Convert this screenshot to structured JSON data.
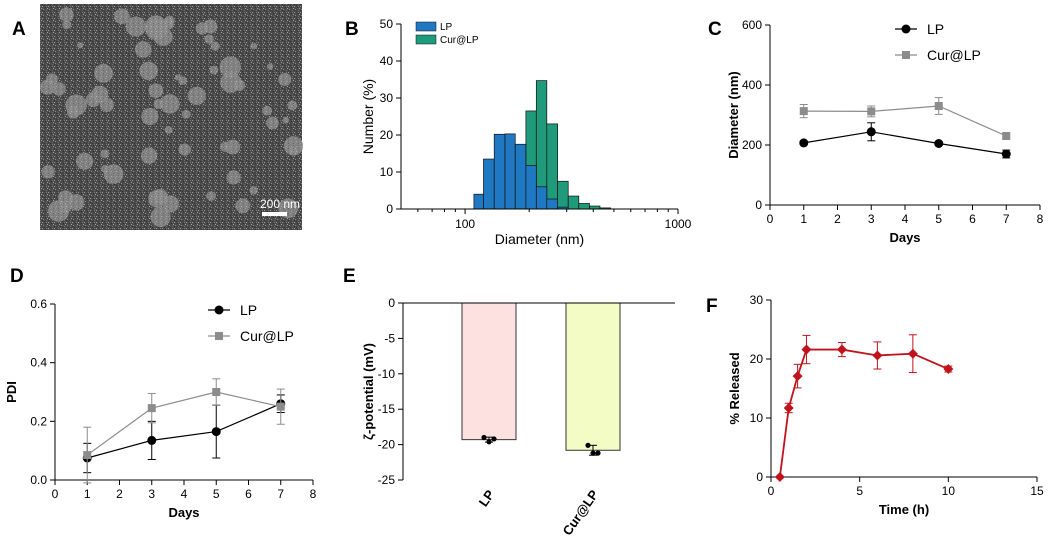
{
  "panel_labels": [
    "A",
    "B",
    "C",
    "D",
    "E",
    "F"
  ],
  "tem": {
    "scale_bar_label": "200 nm"
  },
  "chart_data": [
    {
      "panel": "B",
      "type": "histogram",
      "title": "",
      "xlabel": "Diameter (nm)",
      "ylabel": "Number (%)",
      "xscale": "log",
      "xlim": [
        50,
        1000
      ],
      "ylim": [
        0,
        50
      ],
      "xticks": [
        "100",
        "1000"
      ],
      "yticks": [
        "0",
        "10",
        "20",
        "30",
        "40",
        "50"
      ],
      "legend": [
        "LP",
        "Cur@LP"
      ],
      "series": [
        {
          "name": "LP",
          "color": "#1f78c1",
          "bins": [
            {
              "from": 110,
              "to": 122,
              "value": 4
            },
            {
              "from": 122,
              "to": 137,
              "value": 13.5
            },
            {
              "from": 137,
              "to": 154,
              "value": 20.2
            },
            {
              "from": 154,
              "to": 172,
              "value": 20.3
            },
            {
              "from": 172,
              "to": 193,
              "value": 17.5
            },
            {
              "from": 193,
              "to": 216,
              "value": 11.8
            },
            {
              "from": 216,
              "to": 242,
              "value": 6
            },
            {
              "from": 242,
              "to": 272,
              "value": 2.7
            },
            {
              "from": 272,
              "to": 305,
              "value": 0.5
            }
          ]
        },
        {
          "name": "Cur@LP",
          "color": "#1f9a7a",
          "bins": [
            {
              "from": 193,
              "to": 216,
              "value": 26.5
            },
            {
              "from": 216,
              "to": 242,
              "value": 34.7
            },
            {
              "from": 242,
              "to": 272,
              "value": 23
            },
            {
              "from": 272,
              "to": 305,
              "value": 7.5
            },
            {
              "from": 305,
              "to": 342,
              "value": 3.5
            },
            {
              "from": 342,
              "to": 384,
              "value": 1.5
            },
            {
              "from": 384,
              "to": 430,
              "value": 0.8
            },
            {
              "from": 430,
              "to": 482,
              "value": 0.3
            }
          ]
        }
      ]
    },
    {
      "panel": "C",
      "type": "line",
      "title": "",
      "xlabel": "Days",
      "ylabel": "Diameter (nm)",
      "xlim": [
        0,
        8
      ],
      "ylim": [
        0,
        600
      ],
      "xticks": [
        "0",
        "1",
        "2",
        "3",
        "4",
        "5",
        "6",
        "7",
        "8"
      ],
      "yticks": [
        "0",
        "200",
        "400",
        "600"
      ],
      "x": [
        1,
        3,
        5,
        7
      ],
      "series": [
        {
          "name": "LP",
          "color": "#000000",
          "marker": "circle",
          "values": [
            207,
            244,
            205,
            170
          ],
          "errors": [
            6,
            30,
            6,
            13
          ]
        },
        {
          "name": "Cur@LP",
          "color": "#8c8c8c",
          "marker": "square",
          "values": [
            313,
            312,
            330,
            230
          ],
          "errors": [
            22,
            18,
            28,
            8
          ]
        }
      ]
    },
    {
      "panel": "D",
      "type": "line",
      "title": "",
      "xlabel": "Days",
      "ylabel": "PDI",
      "xlim": [
        0,
        8
      ],
      "ylim": [
        0,
        0.6
      ],
      "xticks": [
        "0",
        "1",
        "2",
        "3",
        "4",
        "5",
        "6",
        "7",
        "8"
      ],
      "yticks": [
        "0.0",
        "0.2",
        "0.4",
        "0.6"
      ],
      "x": [
        1,
        3,
        5,
        7
      ],
      "series": [
        {
          "name": "LP",
          "color": "#000000",
          "marker": "circle",
          "values": [
            0.075,
            0.135,
            0.165,
            0.26
          ],
          "errors": [
            0.05,
            0.065,
            0.09,
            0.03
          ]
        },
        {
          "name": "Cur@LP",
          "color": "#8c8c8c",
          "marker": "square",
          "values": [
            0.085,
            0.245,
            0.3,
            0.25
          ],
          "errors": [
            0.095,
            0.05,
            0.045,
            0.06
          ]
        }
      ]
    },
    {
      "panel": "E",
      "type": "bar",
      "title": "",
      "xlabel": "",
      "ylabel": "ζ-potential (mV)",
      "ylim": [
        -25,
        0
      ],
      "yticks": [
        "0",
        "-5",
        "-10",
        "-15",
        "-20",
        "-25"
      ],
      "categories": [
        "LP",
        "Cur@LP"
      ],
      "values": [
        -19.3,
        -20.8
      ],
      "errors": [
        0.35,
        0.7
      ],
      "colors": [
        "#fde0e0",
        "#f2fcc4"
      ],
      "points": [
        [
          -19.0,
          -19.6,
          -19.2
        ],
        [
          -20.1,
          -21.2,
          -21.2
        ]
      ]
    },
    {
      "panel": "F",
      "type": "line",
      "title": "",
      "xlabel": "Time (h)",
      "ylabel": "% Released",
      "xlim": [
        0,
        15
      ],
      "ylim": [
        0,
        30
      ],
      "xticks": [
        "0",
        "5",
        "10",
        "15"
      ],
      "yticks": [
        "0",
        "10",
        "20",
        "30"
      ],
      "series": [
        {
          "name": "Released",
          "color": "#c0141c",
          "marker": "diamond",
          "x": [
            0.5,
            1,
            1.5,
            2,
            4,
            6,
            8,
            10
          ],
          "values": [
            0,
            11.7,
            17.1,
            21.6,
            21.6,
            20.6,
            20.9,
            18.3
          ],
          "errors": [
            0,
            0.8,
            2,
            2.4,
            1.2,
            2.3,
            3.2,
            0.5
          ]
        }
      ]
    }
  ]
}
